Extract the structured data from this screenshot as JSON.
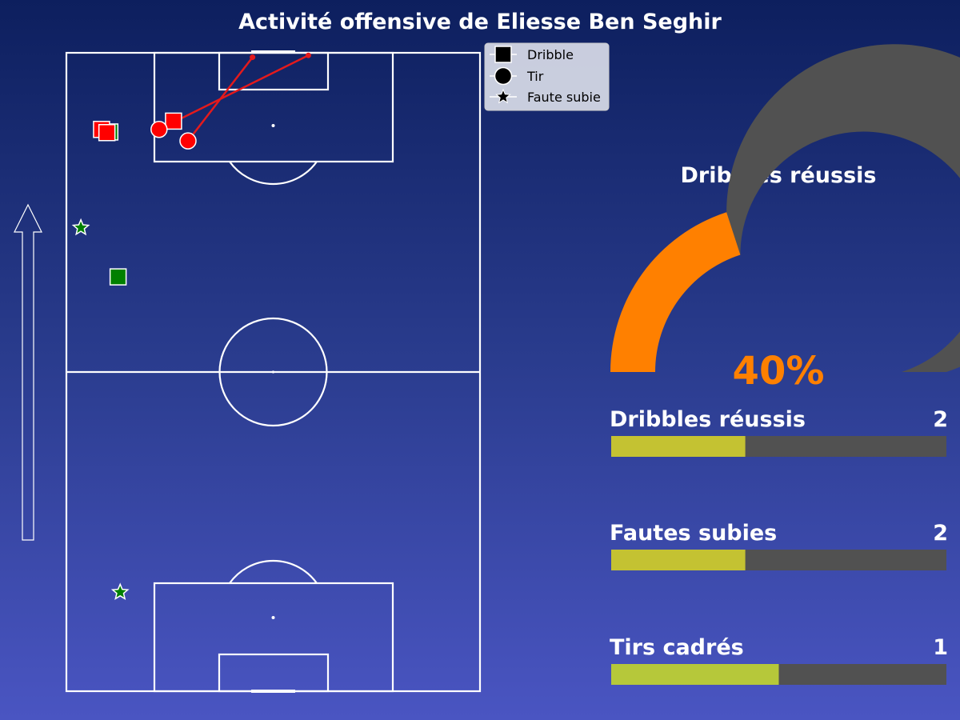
{
  "title": "Activité offensive de Eliesse Ben Seghir",
  "legend": {
    "items": [
      {
        "label": "Dribble",
        "marker": "square"
      },
      {
        "label": "Tir",
        "marker": "circle"
      },
      {
        "label": "Faute subie",
        "marker": "star"
      }
    ]
  },
  "colors": {
    "success": "#008000",
    "fail": "#ff0000",
    "pitch_lines": "#ffffff",
    "gauge_fill": "#ff8000",
    "gauge_track": "#515151",
    "bar_fill_1": "#c4c232",
    "bar_fill_2": "#b6c83a",
    "bar_track": "#515151"
  },
  "chart_data": [
    {
      "type": "scatter",
      "description_units": "pitch coordinates 0-100 (x: left to right, y: own goal 0 to opponent goal 100)",
      "arrow_direction": "up",
      "events": [
        {
          "kind": "dribble",
          "outcome": "success",
          "x": 10.5,
          "y": 87.6
        },
        {
          "kind": "dribble",
          "outcome": "fail",
          "x": 8.5,
          "y": 88.0
        },
        {
          "kind": "dribble",
          "outcome": "fail",
          "x": 9.8,
          "y": 87.5
        },
        {
          "kind": "dribble",
          "outcome": "fail",
          "x": 25.9,
          "y": 89.3
        },
        {
          "kind": "dribble",
          "outcome": "success",
          "x": 12.5,
          "y": 64.9
        },
        {
          "kind": "shot",
          "outcome": "fail",
          "x": 22.4,
          "y": 88.0,
          "end_x": 58.5,
          "end_y": 99.6
        },
        {
          "kind": "shot",
          "outcome": "fail",
          "x": 29.4,
          "y": 86.2,
          "end_x": 45.0,
          "end_y": 99.3
        },
        {
          "kind": "foul_won",
          "outcome": "success",
          "x": 3.5,
          "y": 72.6
        },
        {
          "kind": "foul_won",
          "outcome": "success",
          "x": 13.0,
          "y": 15.5
        }
      ]
    },
    {
      "type": "gauge",
      "title": "Dribbles réussis",
      "value": 40,
      "label": "40%"
    },
    {
      "type": "bar",
      "categories": [
        "Dribbles réussis",
        "Fautes subies",
        "Tirs cadrés"
      ],
      "values": [
        2,
        2,
        1
      ],
      "fill_fraction": [
        0.4,
        0.4,
        0.5
      ]
    }
  ]
}
